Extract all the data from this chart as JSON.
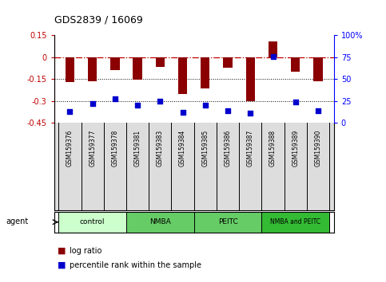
{
  "title": "GDS2839 / 16069",
  "samples": [
    "GSM159376",
    "GSM159377",
    "GSM159378",
    "GSM159381",
    "GSM159383",
    "GSM159384",
    "GSM159385",
    "GSM159386",
    "GSM159387",
    "GSM159388",
    "GSM159389",
    "GSM159390"
  ],
  "log_ratio": [
    -0.17,
    -0.165,
    -0.09,
    -0.155,
    -0.065,
    -0.255,
    -0.215,
    -0.075,
    -0.305,
    0.105,
    -0.1,
    -0.165
  ],
  "percentile_rank": [
    13,
    22,
    27,
    20,
    25,
    12,
    20,
    14,
    11,
    76,
    24,
    14
  ],
  "bar_color": "#8B0000",
  "dot_color": "#0000CD",
  "ref_line_color": "#C00000",
  "ylim_left": [
    -0.45,
    0.15
  ],
  "ylim_right": [
    0,
    100
  ],
  "yticks_left": [
    0.15,
    0.0,
    -0.15,
    -0.3,
    -0.45
  ],
  "yticks_right": [
    100,
    75,
    50,
    25,
    0
  ],
  "hline_y": [
    -0.15,
    -0.3
  ],
  "groups": [
    {
      "label": "control",
      "start": 0,
      "end": 3,
      "color": "#ccffcc"
    },
    {
      "label": "NMBA",
      "start": 3,
      "end": 6,
      "color": "#66cc66"
    },
    {
      "label": "PEITC",
      "start": 6,
      "end": 9,
      "color": "#66cc66"
    },
    {
      "label": "NMBA and PEITC",
      "start": 9,
      "end": 12,
      "color": "#33bb33"
    }
  ],
  "agent_label": "agent",
  "legend_bar_label": "log ratio",
  "legend_dot_label": "percentile rank within the sample",
  "plot_bg": "#ffffff",
  "sample_bg": "#dddddd",
  "bar_width": 0.4
}
